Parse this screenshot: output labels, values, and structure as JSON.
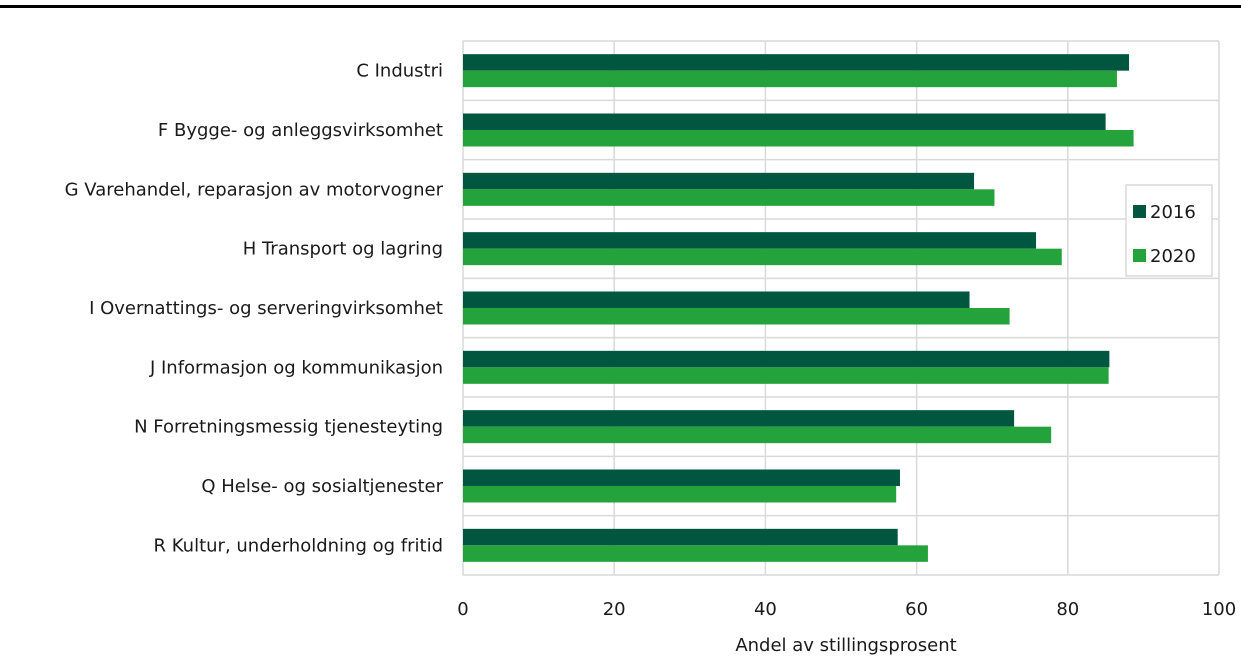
{
  "chart_data": {
    "type": "bar",
    "orientation": "horizontal",
    "categories": [
      "C Industri",
      "F Bygge- og anleggsvirksomhet",
      "G Varehandel, reparasjon av motorvogner",
      "H Transport og lagring",
      "I Overnattings- og serveringvirksomhet",
      "J Informasjon og kommunikasjon",
      "N Forretningsmessig tjenesteyting",
      "Q Helse- og sosialtjenester",
      "R Kultur, underholdning og fritid"
    ],
    "series": [
      {
        "name": "2016",
        "color": "#00563f",
        "values": [
          88.1,
          85.0,
          67.6,
          75.8,
          67.0,
          85.5,
          72.9,
          57.8,
          57.5
        ]
      },
      {
        "name": "2020",
        "color": "#24a23c",
        "values": [
          86.5,
          88.7,
          70.3,
          79.2,
          72.3,
          85.4,
          77.8,
          57.3,
          61.5
        ]
      }
    ],
    "xlabel": "Andel av stillingsprosent",
    "ylabel": "",
    "xlim": [
      0,
      100
    ],
    "xticks": [
      "0",
      "20",
      "40",
      "60",
      "80",
      "100"
    ],
    "grid": true,
    "legend_position": "right"
  }
}
